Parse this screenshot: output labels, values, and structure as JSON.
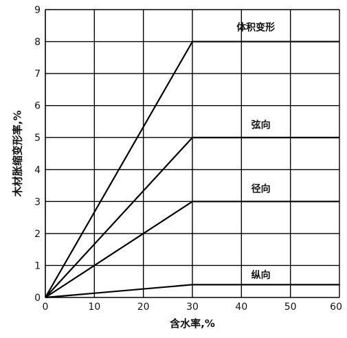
{
  "chart_data": {
    "type": "line",
    "xlabel": "含水率,%",
    "ylabel": "木材胀缩变形率,%",
    "xlim": [
      0,
      60
    ],
    "ylim": [
      0,
      9
    ],
    "xticks": [
      "0",
      "10",
      "20",
      "30",
      "40",
      "50",
      "60"
    ],
    "yticks": [
      "0",
      "1",
      "2",
      "3",
      "4",
      "5",
      "6",
      "7",
      "8",
      "9"
    ],
    "grid": true,
    "series": [
      {
        "name": "体积变形",
        "x": [
          0,
          30,
          60
        ],
        "y": [
          0,
          8,
          8
        ]
      },
      {
        "name": "弦向",
        "x": [
          0,
          30,
          60
        ],
        "y": [
          0,
          5,
          5
        ]
      },
      {
        "name": "径向",
        "x": [
          0,
          30,
          60
        ],
        "y": [
          0,
          3,
          3
        ]
      },
      {
        "name": "纵向",
        "x": [
          0,
          30,
          60
        ],
        "y": [
          0,
          0.4,
          0.4
        ]
      }
    ],
    "series_label_positions": [
      {
        "x": 39,
        "y": 8.35
      },
      {
        "x": 42,
        "y": 5.3
      },
      {
        "x": 42,
        "y": 3.3
      },
      {
        "x": 42,
        "y": 0.6
      }
    ]
  }
}
